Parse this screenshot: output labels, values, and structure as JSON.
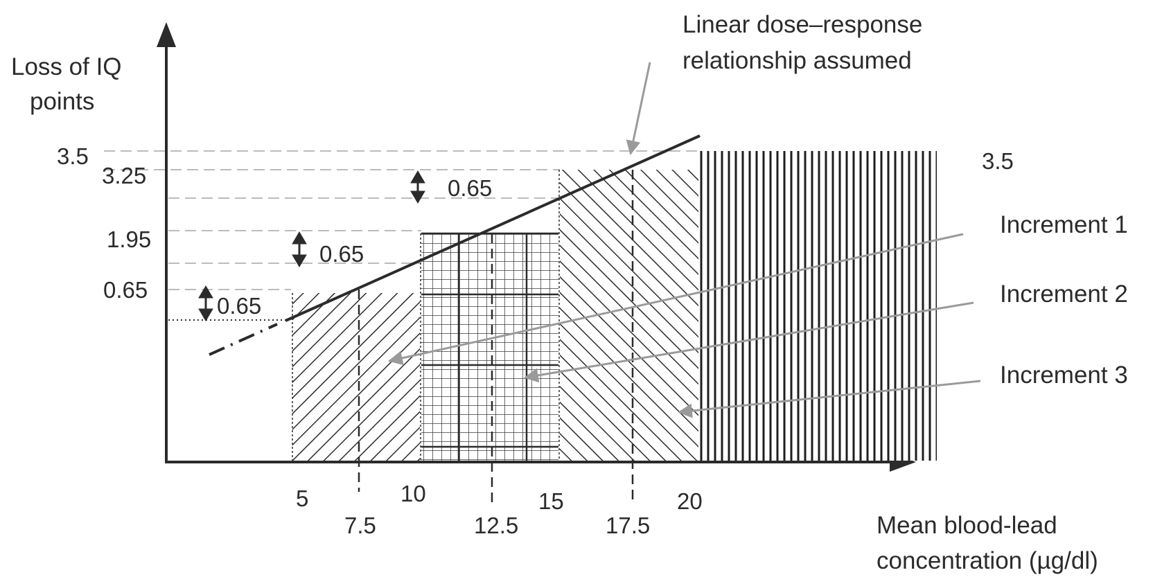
{
  "annotation": {
    "line1": "Linear dose–response",
    "line2": "relationship assumed"
  },
  "y_axis": {
    "label_line1": "Loss  of IQ",
    "label_line2": "points",
    "ticks": [
      "3.5",
      "3.25",
      "1.95",
      "0.65"
    ]
  },
  "x_axis": {
    "label_line1": "Mean blood-lead",
    "label_line2": "concentration (µg/dl)",
    "ticks_upper": [
      "5",
      "10",
      "15",
      "20"
    ],
    "ticks_lower": [
      "7.5",
      "12.5",
      "17.5"
    ]
  },
  "right_value": "3.5",
  "increments": [
    "Increment 1",
    "Increment 2",
    "Increment 3"
  ],
  "deltas": [
    "0.65",
    "0.65",
    "0.65"
  ],
  "chart_data": {
    "type": "area",
    "x_unit": "µg/dl",
    "segments": [
      {
        "x": [
          5,
          10
        ],
        "y": 0.65
      },
      {
        "x": [
          10,
          15
        ],
        "y": 1.95
      },
      {
        "x": [
          15,
          20
        ],
        "y": 3.25
      },
      {
        "x": [
          20,
          25
        ],
        "y": 3.5
      }
    ],
    "dose_response_line": {
      "x": [
        5,
        20
      ],
      "y": [
        0.65,
        3.5
      ]
    },
    "colors": {
      "ink": "#2b2b2b",
      "arrow": "#9a9a9a",
      "guide": "#bbbbbb"
    }
  }
}
